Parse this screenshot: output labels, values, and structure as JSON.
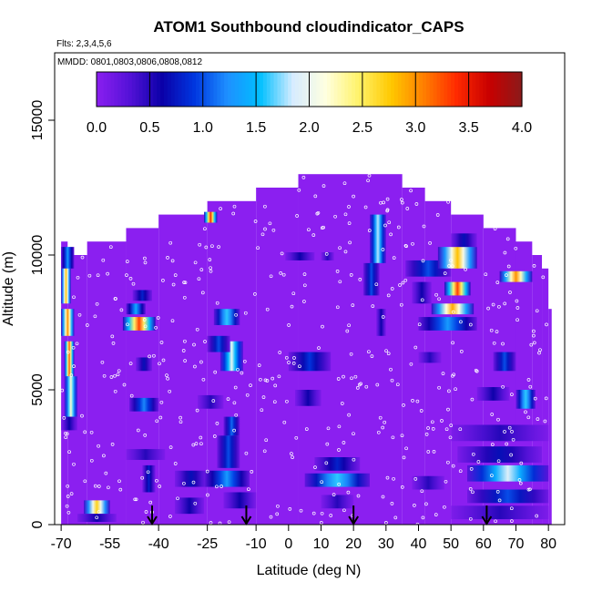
{
  "chart_data": {
    "type": "heatmap",
    "title": "ATOM1 Southbound cloudindicator_CAPS",
    "flights_label": "Flts: 2,3,4,5,6",
    "dates_label": "MMDD: 0801,0803,0806,0808,0812",
    "xlabel": "Latitude (deg N)",
    "ylabel": "Altitude (m)",
    "xlim": [
      -72,
      85
    ],
    "ylim": [
      0,
      17500
    ],
    "x_ticks": [
      -70,
      -55,
      -40,
      -25,
      -10,
      0,
      10,
      20,
      30,
      40,
      50,
      60,
      70,
      80
    ],
    "x_tick_labels": [
      "-70",
      "-55",
      "-40",
      "-25",
      "-10",
      "0",
      "10",
      "20",
      "30",
      "40",
      "50",
      "60",
      "70",
      "80"
    ],
    "y_ticks": [
      0,
      5000,
      10000,
      15000
    ],
    "y_tick_labels": [
      "0",
      "5000",
      "10000",
      "15000"
    ],
    "colorbar": {
      "min": 0.0,
      "max": 4.0,
      "tick_labels": [
        "0.0",
        "0.5",
        "1.0",
        "1.5",
        "2.0",
        "2.5",
        "3.0",
        "3.5",
        "4.0"
      ],
      "colors": [
        "#8B1FF0",
        "#5512D8",
        "#0A00A8",
        "#0037E0",
        "#1E90FF",
        "#00BFFF",
        "#D6ECFF",
        "#FFFFE0",
        "#FFF36B",
        "#FFC800",
        "#FF7F00",
        "#FF2A00",
        "#C80000",
        "#8B1A1A"
      ]
    },
    "coverage": [
      [
        -70,
        -68,
        0,
        10500
      ],
      [
        -68,
        -62,
        0,
        10000
      ],
      [
        -62,
        -50,
        0,
        10500
      ],
      [
        -50,
        -40,
        0,
        11000
      ],
      [
        -40,
        -25,
        0,
        11500
      ],
      [
        -25,
        -10,
        0,
        12000
      ],
      [
        -10,
        3,
        0,
        12500
      ],
      [
        3,
        35,
        0,
        13000
      ],
      [
        35,
        42,
        0,
        12500
      ],
      [
        42,
        50,
        0,
        12000
      ],
      [
        50,
        60,
        0,
        11500
      ],
      [
        60,
        70,
        0,
        11000
      ],
      [
        70,
        75,
        0,
        10500
      ],
      [
        75,
        78,
        0,
        10000
      ],
      [
        78,
        80,
        0,
        9500
      ],
      [
        80,
        81,
        0,
        8000
      ]
    ],
    "cells": [
      [
        -70,
        -66,
        9500,
        10300,
        1.3
      ],
      [
        -70,
        -67,
        8200,
        9500,
        2.8
      ],
      [
        -70,
        -66,
        7000,
        8000,
        3.0
      ],
      [
        -69,
        -66,
        5500,
        6800,
        3.2
      ],
      [
        -69,
        -65,
        4000,
        5500,
        2.2
      ],
      [
        -70,
        -65,
        3500,
        4000,
        0.6
      ],
      [
        -63,
        -55,
        400,
        900,
        2.7
      ],
      [
        -65,
        -53,
        100,
        400,
        0.6
      ],
      [
        -51,
        -41,
        7200,
        7700,
        3.3
      ],
      [
        -50,
        -44,
        7800,
        8200,
        1.4
      ],
      [
        -48,
        -42,
        8300,
        8700,
        0.8
      ],
      [
        -47,
        -42,
        5700,
        6200,
        0.7
      ],
      [
        -49,
        -40,
        4200,
        4700,
        1.2
      ],
      [
        -45,
        -41,
        1200,
        2200,
        0.8
      ],
      [
        -50,
        -38,
        2400,
        2800,
        0.5
      ],
      [
        -35,
        -26,
        400,
        1000,
        0.6
      ],
      [
        -35,
        -25,
        1400,
        2000,
        0.7
      ],
      [
        -26,
        -22,
        11200,
        11600,
        3.4
      ],
      [
        -23,
        -15,
        7400,
        8000,
        1.6
      ],
      [
        -21,
        -14,
        5700,
        6800,
        2.0
      ],
      [
        -25,
        -18,
        6400,
        7000,
        1.0
      ],
      [
        -20,
        -15,
        3300,
        4000,
        1.1
      ],
      [
        -22,
        -15,
        2100,
        3300,
        1.0
      ],
      [
        -26,
        -12,
        1400,
        2000,
        1.3
      ],
      [
        -28,
        -20,
        4300,
        4800,
        0.5
      ],
      [
        -20,
        -10,
        600,
        1200,
        0.6
      ],
      [
        -1,
        8,
        9800,
        10100,
        0.6
      ],
      [
        10,
        14,
        9800,
        10100,
        0.5
      ],
      [
        0,
        13,
        5700,
        6400,
        0.9
      ],
      [
        2,
        10,
        4400,
        5000,
        0.6
      ],
      [
        5,
        25,
        1400,
        1900,
        1.6
      ],
      [
        8,
        22,
        2000,
        2500,
        0.8
      ],
      [
        10,
        20,
        600,
        1100,
        0.5
      ],
      [
        25,
        30,
        9700,
        11500,
        1.8
      ],
      [
        23,
        28,
        8500,
        9700,
        1.0
      ],
      [
        27,
        30,
        7000,
        8000,
        0.6
      ],
      [
        36,
        50,
        9200,
        9800,
        1.0
      ],
      [
        38,
        44,
        8200,
        9000,
        0.6
      ],
      [
        46,
        58,
        9500,
        10300,
        2.8
      ],
      [
        48,
        56,
        8500,
        9000,
        3.3
      ],
      [
        44,
        57,
        7800,
        8200,
        2.9
      ],
      [
        40,
        58,
        7200,
        7700,
        1.3
      ],
      [
        50,
        58,
        10300,
        10800,
        0.7
      ],
      [
        65,
        75,
        9000,
        9400,
        3.0
      ],
      [
        40,
        47,
        6000,
        6400,
        0.5
      ],
      [
        63,
        70,
        5700,
        6400,
        1.0
      ],
      [
        70,
        76,
        4300,
        5000,
        1.6
      ],
      [
        58,
        68,
        4600,
        5100,
        0.6
      ],
      [
        55,
        80,
        1600,
        2200,
        1.9
      ],
      [
        52,
        78,
        2300,
        2900,
        0.7
      ],
      [
        50,
        80,
        3100,
        3700,
        0.5
      ],
      [
        55,
        80,
        800,
        1300,
        1.0
      ],
      [
        50,
        80,
        200,
        700,
        0.5
      ],
      [
        38,
        48,
        1300,
        1800,
        0.5
      ]
    ],
    "arrows_lat": [
      -42,
      -13,
      20,
      61
    ]
  }
}
